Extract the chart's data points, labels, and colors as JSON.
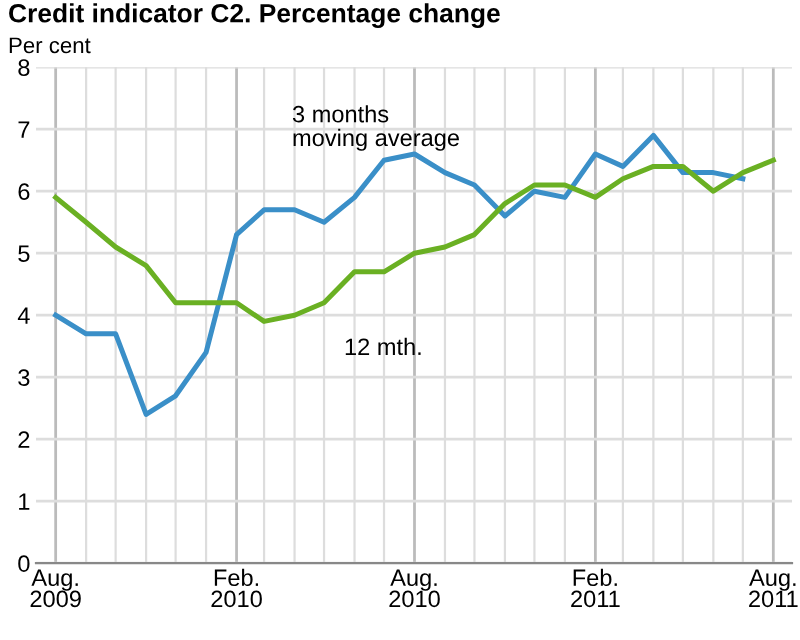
{
  "chart_data": {
    "type": "line",
    "title": "Credit indicator C2. Percentage change",
    "ylabel": "Per cent",
    "x": [
      "2009-08",
      "2009-09",
      "2009-10",
      "2009-11",
      "2009-12",
      "2010-01",
      "2010-02",
      "2010-03",
      "2010-04",
      "2010-05",
      "2010-06",
      "2010-07",
      "2010-08",
      "2010-09",
      "2010-10",
      "2010-11",
      "2010-12",
      "2011-01",
      "2011-02",
      "2011-03",
      "2011-04",
      "2011-05",
      "2011-06",
      "2011-07",
      "2011-08"
    ],
    "series": [
      {
        "color": "#3a8fc8",
        "values": [
          4.0,
          3.7,
          3.7,
          2.4,
          2.7,
          3.4,
          5.3,
          5.7,
          5.7,
          5.5,
          5.9,
          6.5,
          6.6,
          6.3,
          6.1,
          5.6,
          6.0,
          5.9,
          6.6,
          6.4,
          6.9,
          6.3,
          6.3,
          6.2,
          null
        ]
      },
      {
        "color": "#6ab023",
        "values": [
          5.9,
          5.5,
          5.1,
          4.8,
          4.2,
          4.2,
          4.2,
          3.9,
          4.0,
          4.2,
          4.7,
          4.7,
          5.0,
          5.1,
          5.3,
          5.8,
          6.1,
          6.1,
          5.9,
          6.2,
          6.4,
          6.4,
          6.0,
          6.3,
          6.5
        ]
      }
    ],
    "annotations": [
      "3 months\nmoving average",
      "12 mth."
    ],
    "xlim": [
      "2009-07-12",
      "2011-08-20"
    ],
    "xticks": [
      {
        "value": "2009-08",
        "label": "Aug.\n2009"
      },
      {
        "value": "2009-09",
        "label": null
      },
      {
        "value": "2009-10",
        "label": null
      },
      {
        "value": "2009-11",
        "label": null
      },
      {
        "value": "2009-12",
        "label": null
      },
      {
        "value": "2010-01",
        "label": null
      },
      {
        "value": "2010-02",
        "label": "Feb.\n2010"
      },
      {
        "value": "2010-03",
        "label": null
      },
      {
        "value": "2010-04",
        "label": null
      },
      {
        "value": "2010-05",
        "label": null
      },
      {
        "value": "2010-06",
        "label": null
      },
      {
        "value": "2010-07",
        "label": null
      },
      {
        "value": "2010-08",
        "label": "Aug.\n2010"
      },
      {
        "value": "2010-09",
        "label": null
      },
      {
        "value": "2010-10",
        "label": null
      },
      {
        "value": "2010-11",
        "label": null
      },
      {
        "value": "2010-12",
        "label": null
      },
      {
        "value": "2011-01",
        "label": null
      },
      {
        "value": "2011-02",
        "label": "Feb.\n2011"
      },
      {
        "value": "2011-03",
        "label": null
      },
      {
        "value": "2011-04",
        "label": null
      },
      {
        "value": "2011-05",
        "label": null
      },
      {
        "value": "2011-06",
        "label": null
      },
      {
        "value": "2011-07",
        "label": null
      },
      {
        "value": "2011-08",
        "label": "Aug.\n2011"
      }
    ],
    "ylim": [
      0,
      8
    ],
    "yticks": [
      0,
      1,
      2,
      3,
      4,
      5,
      6,
      7,
      8
    ],
    "grid": true,
    "legend": false,
    "marker": "none",
    "line_style": "solid"
  }
}
